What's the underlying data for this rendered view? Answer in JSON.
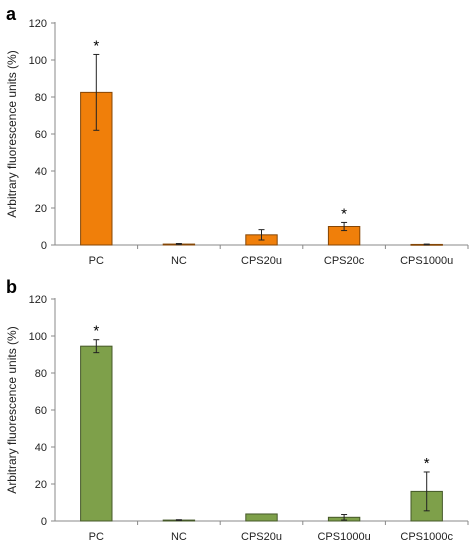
{
  "chart_data": [
    {
      "type": "bar",
      "panel_label": "a",
      "ylabel": "Arbitrary fluorescence units (%)",
      "xlabel": "",
      "ylim": [
        0,
        120
      ],
      "yticks": [
        "0",
        "20",
        "40",
        "60",
        "80",
        "100",
        "120"
      ],
      "grid": false,
      "categories": [
        "PC",
        "NC",
        "CPS20u",
        "CPS20c",
        "CPS1000u"
      ],
      "values": [
        82.5,
        0.5,
        5.5,
        10,
        0.3
      ],
      "errors": [
        20.5,
        0.3,
        2.8,
        2.2,
        0.2
      ],
      "significance": [
        "*",
        "",
        "",
        "*",
        ""
      ],
      "color": "#f07f0a"
    },
    {
      "type": "bar",
      "panel_label": "b",
      "ylabel": "Arbitrary fluorescence units (%)",
      "xlabel": "",
      "ylim": [
        0,
        120
      ],
      "yticks": [
        "0",
        "20",
        "40",
        "60",
        "80",
        "100",
        "120"
      ],
      "grid": false,
      "categories": [
        "PC",
        "NC",
        "CPS20u",
        "CPS1000u",
        "CPS1000c"
      ],
      "values": [
        94.5,
        0.5,
        3.8,
        2,
        16
      ],
      "errors": [
        3.5,
        0.2,
        0,
        1.5,
        10.5
      ],
      "significance": [
        "*",
        "",
        "",
        "",
        "*"
      ],
      "color": "#7ea04a"
    }
  ]
}
